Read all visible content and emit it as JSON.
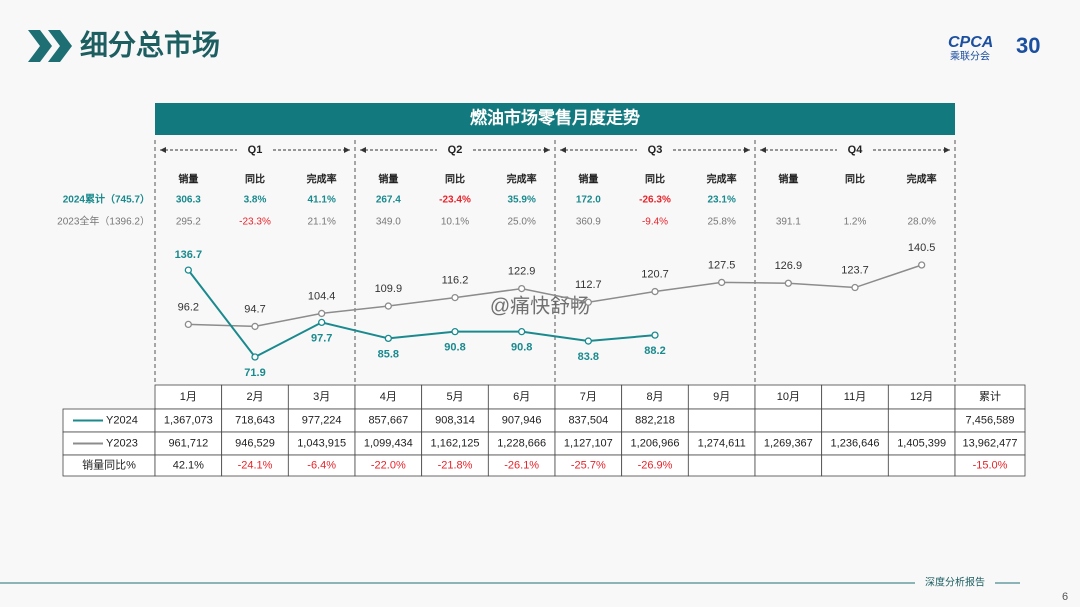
{
  "header": {
    "title": "细分总市场"
  },
  "logo": {
    "name": "CPCA",
    "org": "乘联分会",
    "years": "30"
  },
  "watermark": "@痛快舒畅",
  "footer": {
    "text": "深度分析报告",
    "page": "6"
  },
  "chart_data": {
    "type": "line",
    "title": "燃油市场零售月度走势",
    "categories": [
      "1月",
      "2月",
      "3月",
      "4月",
      "5月",
      "6月",
      "7月",
      "8月",
      "9月",
      "10月",
      "11月",
      "12月"
    ],
    "series": [
      {
        "name": "Y2024",
        "color": "#1a8a8e",
        "values": [
          136.7,
          71.9,
          97.7,
          85.8,
          90.8,
          90.8,
          83.8,
          88.2,
          null,
          null,
          null,
          null
        ]
      },
      {
        "name": "Y2023",
        "color": "#8c8c8c",
        "values": [
          96.2,
          94.7,
          104.4,
          109.9,
          116.2,
          122.9,
          112.7,
          120.7,
          127.5,
          126.9,
          123.7,
          140.5
        ]
      }
    ],
    "quarters": [
      {
        "label": "Q1",
        "columns": [
          "销量",
          "同比",
          "完成率"
        ]
      },
      {
        "label": "Q2",
        "columns": [
          "销量",
          "同比",
          "完成率"
        ]
      },
      {
        "label": "Q3",
        "columns": [
          "销量",
          "同比",
          "完成率"
        ]
      },
      {
        "label": "Q4",
        "columns": [
          "销量",
          "同比",
          "完成率"
        ]
      }
    ],
    "summary": [
      {
        "label": "2024累计（745.7）",
        "cells": [
          "306.3",
          "3.8%",
          "41.1%",
          "267.4",
          "-23.4%",
          "35.9%",
          "172.0",
          "-26.3%",
          "23.1%"
        ]
      },
      {
        "label": "2023全年（1396.2）",
        "cells": [
          "295.2",
          "-23.3%",
          "21.1%",
          "349.0",
          "10.1%",
          "25.0%",
          "360.9",
          "-9.4%",
          "25.8%",
          "391.1",
          "1.2%",
          "28.0%"
        ]
      }
    ]
  },
  "table": {
    "header": [
      "1月",
      "2月",
      "3月",
      "4月",
      "5月",
      "6月",
      "7月",
      "8月",
      "9月",
      "10月",
      "11月",
      "12月",
      "累计"
    ],
    "rows": [
      {
        "cells": [
          "1,367,073",
          "718,643",
          "977,224",
          "857,667",
          "908,314",
          "907,946",
          "837,504",
          "882,218",
          null,
          null,
          null,
          null,
          "7,456,589"
        ]
      },
      {
        "cells": [
          "961,712",
          "946,529",
          "1,043,915",
          "1,099,434",
          "1,162,125",
          "1,228,666",
          "1,127,107",
          "1,206,966",
          "1,274,611",
          "1,269,367",
          "1,236,646",
          "1,405,399",
          "13,962,477"
        ]
      },
      {
        "label": "销量同比%",
        "cells": [
          "42.1%",
          "-24.1%",
          "-6.4%",
          "-22.0%",
          "-21.8%",
          "-26.1%",
          "-25.7%",
          "-26.9%",
          null,
          null,
          null,
          null,
          "-15.0%"
        ]
      }
    ]
  }
}
